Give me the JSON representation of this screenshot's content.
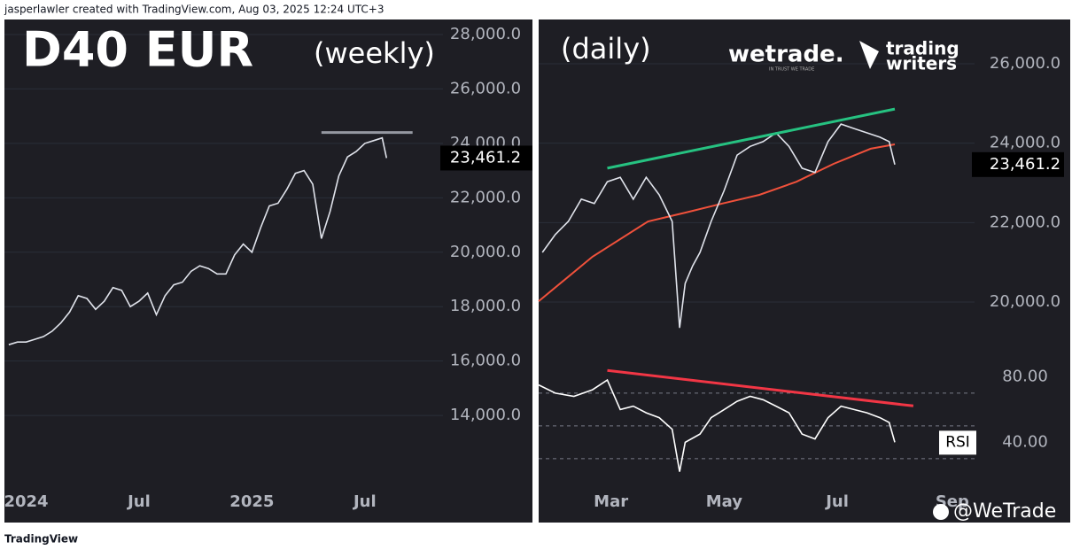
{
  "header": {
    "attribution": "jasperlawler created with TradingView.com, Aug 03, 2025 12:24 UTC+3"
  },
  "footer": {
    "brand": "TradingView",
    "watermark": "@WeTrade"
  },
  "logos": {
    "wetrade": "wetrade.",
    "wetrade_tagline": "IN TRUST WE TRADE",
    "writers_top": "trading",
    "writers_bottom": "writers"
  },
  "chart_data": [
    {
      "type": "line",
      "title": "D40 EUR",
      "subtitle": "(weekly)",
      "x": [
        -4,
        -2,
        0,
        2,
        4,
        6,
        8,
        10,
        12,
        14,
        16,
        18,
        20,
        22,
        24,
        26,
        28,
        30,
        32,
        34,
        36,
        38,
        40,
        42,
        44,
        46,
        48,
        50,
        52,
        54,
        56,
        58,
        60,
        62,
        64,
        66,
        68,
        70,
        72,
        74,
        76,
        78,
        80,
        82,
        83
      ],
      "series": [
        {
          "color": "#e0e3eb",
          "values": [
            16600,
            16700,
            16700,
            16800,
            16900,
            17100,
            17400,
            17800,
            18400,
            18300,
            17900,
            18200,
            18700,
            18600,
            18000,
            18200,
            18500,
            17700,
            18400,
            18800,
            18900,
            19300,
            19500,
            19400,
            19200,
            19200,
            19900,
            20300,
            20000,
            20900,
            21700,
            21800,
            22300,
            22900,
            23000,
            22500,
            20500,
            21500,
            22800,
            23500,
            23700,
            24000,
            24100,
            24200,
            23461.2
          ]
        }
      ],
      "last_value": {
        "value": 23461.2,
        "label": "23,461.2"
      },
      "resistance": {
        "x": [
          68,
          89
        ],
        "values": [
          24400,
          24400
        ],
        "color": "#9598a1"
      },
      "xlim": [
        -5,
        96
      ],
      "ylim": [
        10065,
        28553
      ],
      "xticks": [
        {
          "value": 0,
          "label": "2024"
        },
        {
          "value": 26,
          "label": "Jul"
        },
        {
          "value": 52,
          "label": "2025"
        },
        {
          "value": 78,
          "label": "Jul"
        }
      ],
      "yticks": [
        {
          "value": 14000,
          "label": "14,000.0"
        },
        {
          "value": 16000,
          "label": "16,000.0"
        },
        {
          "value": 18000,
          "label": "18,000.0"
        },
        {
          "value": 20000,
          "label": "20,000.0"
        },
        {
          "value": 22000,
          "label": "22,000.0"
        },
        {
          "value": 24000,
          "label": "24,000.0"
        },
        {
          "value": 26000,
          "label": "26,000.0"
        },
        {
          "value": 28000,
          "label": "28,000.0"
        }
      ],
      "grid": true
    },
    {
      "type": "line",
      "title": "(daily)",
      "x": [
        23,
        30,
        37,
        44,
        51,
        58,
        65,
        72,
        79,
        86,
        93,
        97,
        100,
        104,
        108,
        114,
        121,
        128,
        135,
        142,
        149,
        156,
        163,
        170,
        177,
        184,
        191,
        198,
        205,
        210,
        213
      ],
      "series": [
        {
          "color": "#e0e3eb",
          "values": [
            21250,
            21700,
            22030,
            22590,
            22480,
            23030,
            23140,
            22590,
            23140,
            22700,
            22030,
            19350,
            20470,
            20910,
            21250,
            22030,
            22810,
            23700,
            23920,
            24040,
            24260,
            23920,
            23370,
            23260,
            24040,
            24480,
            24370,
            24260,
            24150,
            24040,
            23461.2
          ]
        }
      ],
      "moving_average": {
        "color": "#f0513b",
        "x": [
          21,
          50,
          80,
          100,
          120,
          140,
          160,
          180,
          200,
          213
        ],
        "values": [
          20020,
          21140,
          22030,
          22250,
          22480,
          22700,
          23030,
          23480,
          23860,
          23970
        ]
      },
      "trendline": {
        "color": "#26c281",
        "x": [
          58,
          213
        ],
        "values": [
          23370,
          24860
        ]
      },
      "last_value": {
        "value": 23461.2,
        "label": "23,461.2"
      },
      "xlim": [
        21,
        256
      ],
      "ylim": [
        18573,
        27115
      ],
      "xticks": [
        {
          "value": 60,
          "label": "Mar"
        },
        {
          "value": 121,
          "label": "May"
        },
        {
          "value": 182,
          "label": "Jul"
        },
        {
          "value": 244,
          "label": "Sep"
        }
      ],
      "yticks": [
        {
          "value": 20000,
          "label": "20,000.0"
        },
        {
          "value": 22000,
          "label": "22,000.0"
        },
        {
          "value": 24000,
          "label": "24,000.0"
        },
        {
          "value": 26000,
          "label": "26,000.0"
        }
      ],
      "grid": true
    },
    {
      "type": "line",
      "name": "RSI",
      "x": [
        21,
        30,
        40,
        50,
        58,
        65,
        72,
        79,
        86,
        93,
        97,
        100,
        108,
        114,
        121,
        128,
        135,
        142,
        149,
        156,
        163,
        170,
        177,
        184,
        191,
        198,
        205,
        210,
        213
      ],
      "series": [
        {
          "color": "#ffffff",
          "values": [
            75,
            70,
            68,
            72,
            78,
            60,
            62,
            58,
            55,
            48,
            22,
            40,
            45,
            55,
            60,
            65,
            68,
            66,
            62,
            58,
            45,
            42,
            55,
            62,
            60,
            58,
            55,
            52,
            40
          ]
        }
      ],
      "trendline": {
        "color": "#f23645",
        "x": [
          58,
          223
        ],
        "values": [
          83.8,
          62.2
        ]
      },
      "levels": [
        70,
        50,
        30
      ],
      "xlim": [
        21,
        256
      ],
      "ylim": [
        -9,
        91
      ],
      "yticks": [
        {
          "value": 40,
          "label": "40.00"
        },
        {
          "value": 80,
          "label": "80.00"
        }
      ]
    }
  ]
}
